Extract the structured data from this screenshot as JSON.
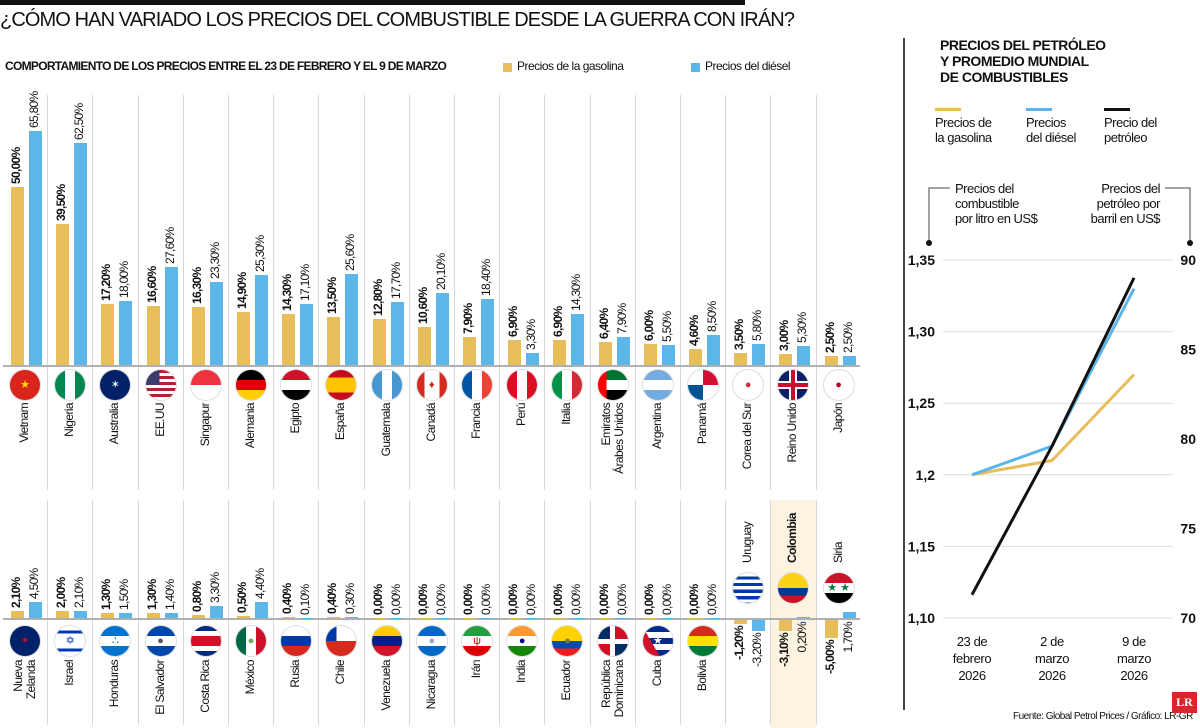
{
  "title": "¿CÓMO HAN VARIADO LOS PRECIOS DEL COMBUSTIBLE DESDE LA GUERRA CON IRÁN?",
  "subtitle": "COMPORTAMIENTO DE LOS PRECIOS ENTRE EL 23 DE FEBRERO Y EL 9 DE MARZO",
  "legend": {
    "gasoline": "Precios de la gasolina",
    "diesel": "Precios del diésel"
  },
  "colors": {
    "gasoline": "#e8bd5c",
    "diesel": "#5cb6e8",
    "oil": "#111111",
    "highlight": "#fdf3e1"
  },
  "chart_data": [
    {
      "type": "bar",
      "categories": [
        "Vietnam",
        "Nigeria",
        "Australia",
        "EE.UU",
        "Singapur",
        "Alemania",
        "Egipto",
        "España",
        "Guatemala",
        "Canadá",
        "Francia",
        "Perú",
        "Italia",
        "Emiratos\nÁrabes Unidos",
        "Argentina",
        "Panamá",
        "Corea del Sur",
        "Reino Unido",
        "Japón",
        "Nueva\nZelanda",
        "Israel",
        "Honduras",
        "El Salvador",
        "Costa Rica",
        "México",
        "Rusia",
        "Chile",
        "Venezuela",
        "Nicaragua",
        "Irán",
        "India",
        "Ecuador",
        "República\nDominicana",
        "Cuba",
        "Bolivia",
        "Uruguay",
        "Colombia",
        "Siria"
      ],
      "flags": [
        "flag-vietnam",
        "flag-nigeria",
        "flag-australia",
        "flag-usa",
        "flag-singapore",
        "flag-germany",
        "flag-egypt",
        "flag-spain",
        "flag-guatemala",
        "flag-canada",
        "flag-france",
        "flag-peru",
        "flag-italy",
        "flag-uae",
        "flag-argentina",
        "flag-panama",
        "flag-korea",
        "flag-uk",
        "flag-japan",
        "flag-new-zealand",
        "flag-israel",
        "flag-honduras",
        "flag-el-salvador",
        "flag-costa-rica",
        "flag-mexico",
        "flag-russia",
        "flag-chile",
        "flag-venezuela",
        "flag-nicaragua",
        "flag-iran",
        "flag-india",
        "flag-ecuador",
        "flag-dominican-republic",
        "flag-cuba",
        "flag-bolivia",
        "flag-uruguay",
        "flag-colombia",
        "flag-syria"
      ],
      "series": [
        {
          "name": "Precios de la gasolina",
          "values": [
            50.0,
            39.5,
            17.2,
            16.6,
            16.3,
            14.9,
            14.3,
            13.5,
            12.8,
            10.6,
            7.9,
            6.9,
            6.9,
            6.4,
            6.0,
            4.6,
            3.5,
            3.0,
            2.5,
            2.1,
            2.0,
            1.3,
            1.3,
            0.8,
            0.5,
            0.4,
            0.4,
            0.0,
            0.0,
            0.0,
            0.0,
            0.0,
            0.0,
            0.0,
            0.0,
            -1.2,
            -3.1,
            -5.0
          ]
        },
        {
          "name": "Precios del diésel",
          "values": [
            65.8,
            62.5,
            18.0,
            27.6,
            23.3,
            25.3,
            17.1,
            25.6,
            17.7,
            20.1,
            18.4,
            3.3,
            14.3,
            7.9,
            5.5,
            8.5,
            5.8,
            5.3,
            2.5,
            4.5,
            2.1,
            1.5,
            1.4,
            3.3,
            4.4,
            0.1,
            0.3,
            0.0,
            0.0,
            0.0,
            0.0,
            0.0,
            0.0,
            0.0,
            0.0,
            -3.2,
            0.2,
            1.7
          ]
        }
      ],
      "unit": "%",
      "highlight": "Colombia"
    },
    {
      "type": "line",
      "title": "PRECIOS DEL PETRÓLEO\nY PROMEDIO MUNDIAL\nDE COMBUSTIBLES",
      "x": [
        "23 de\nfebrero\n2026",
        "2 de\nmarzo\n2026",
        "9 de\nmarzo\n2026"
      ],
      "left_axis": {
        "label": "Precios del\ncombustible\npor litro en US$",
        "ylim": [
          1.1,
          1.35
        ],
        "ticks": [
          1.1,
          1.15,
          1.2,
          1.25,
          1.3,
          1.35
        ],
        "tick_labels": [
          "1,10",
          "1,15",
          "1,2",
          "1,25",
          "1,30",
          "1,35"
        ]
      },
      "right_axis": {
        "label": "Precios del\npetróleo por\nbarril en US$",
        "ylim": [
          70,
          90
        ],
        "ticks": [
          70,
          75,
          80,
          85,
          90
        ],
        "tick_labels": [
          "70",
          "75",
          "80",
          "85",
          "90"
        ]
      },
      "grid": true,
      "series": [
        {
          "name": "Precios de\nla gasolina",
          "axis": "left",
          "values": [
            1.2,
            1.21,
            1.27
          ]
        },
        {
          "name": "Precios\ndel diésel",
          "axis": "left",
          "values": [
            1.2,
            1.22,
            1.33
          ]
        },
        {
          "name": "Precio del\npetróleo",
          "axis": "right",
          "values": [
            71.3,
            79.6,
            89.0
          ]
        }
      ],
      "legend_position": "top"
    }
  ],
  "footer": {
    "source": "Fuente: Global Petrol Prices / Gráfico: LR-GR",
    "logo": "LR"
  }
}
